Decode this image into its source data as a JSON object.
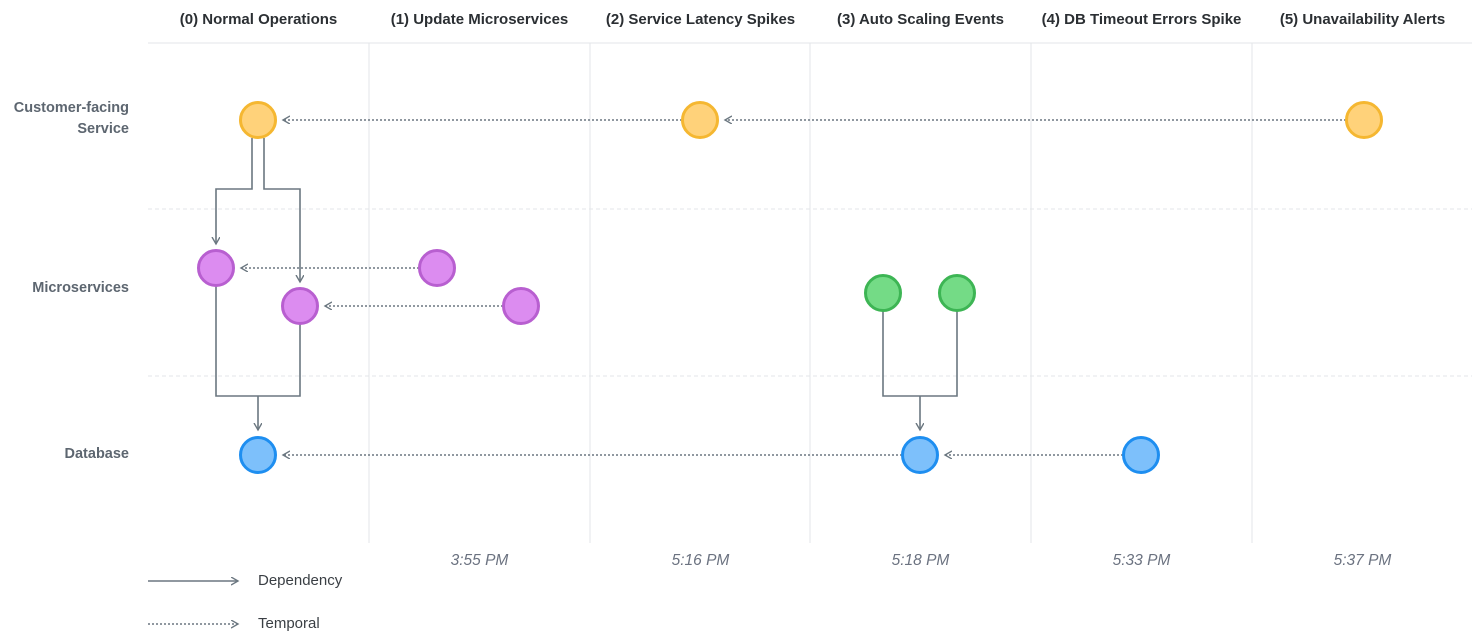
{
  "columns": [
    {
      "title": "(0) Normal Operations"
    },
    {
      "title": "(1) Update Microservices",
      "time": "3:55 PM"
    },
    {
      "title": "(2) Service Latency Spikes",
      "time": "5:16 PM"
    },
    {
      "title": "(3) Auto Scaling Events",
      "time": "5:18 PM"
    },
    {
      "title": "(4) DB Timeout Errors Spike",
      "time": "5:33 PM"
    },
    {
      "title": "(5) Unavailability Alerts",
      "time": "5:37 PM"
    }
  ],
  "rows": [
    "Customer-facing Service",
    "Microservices",
    "Database"
  ],
  "legend": [
    "Dependency",
    "Temporal"
  ]
}
